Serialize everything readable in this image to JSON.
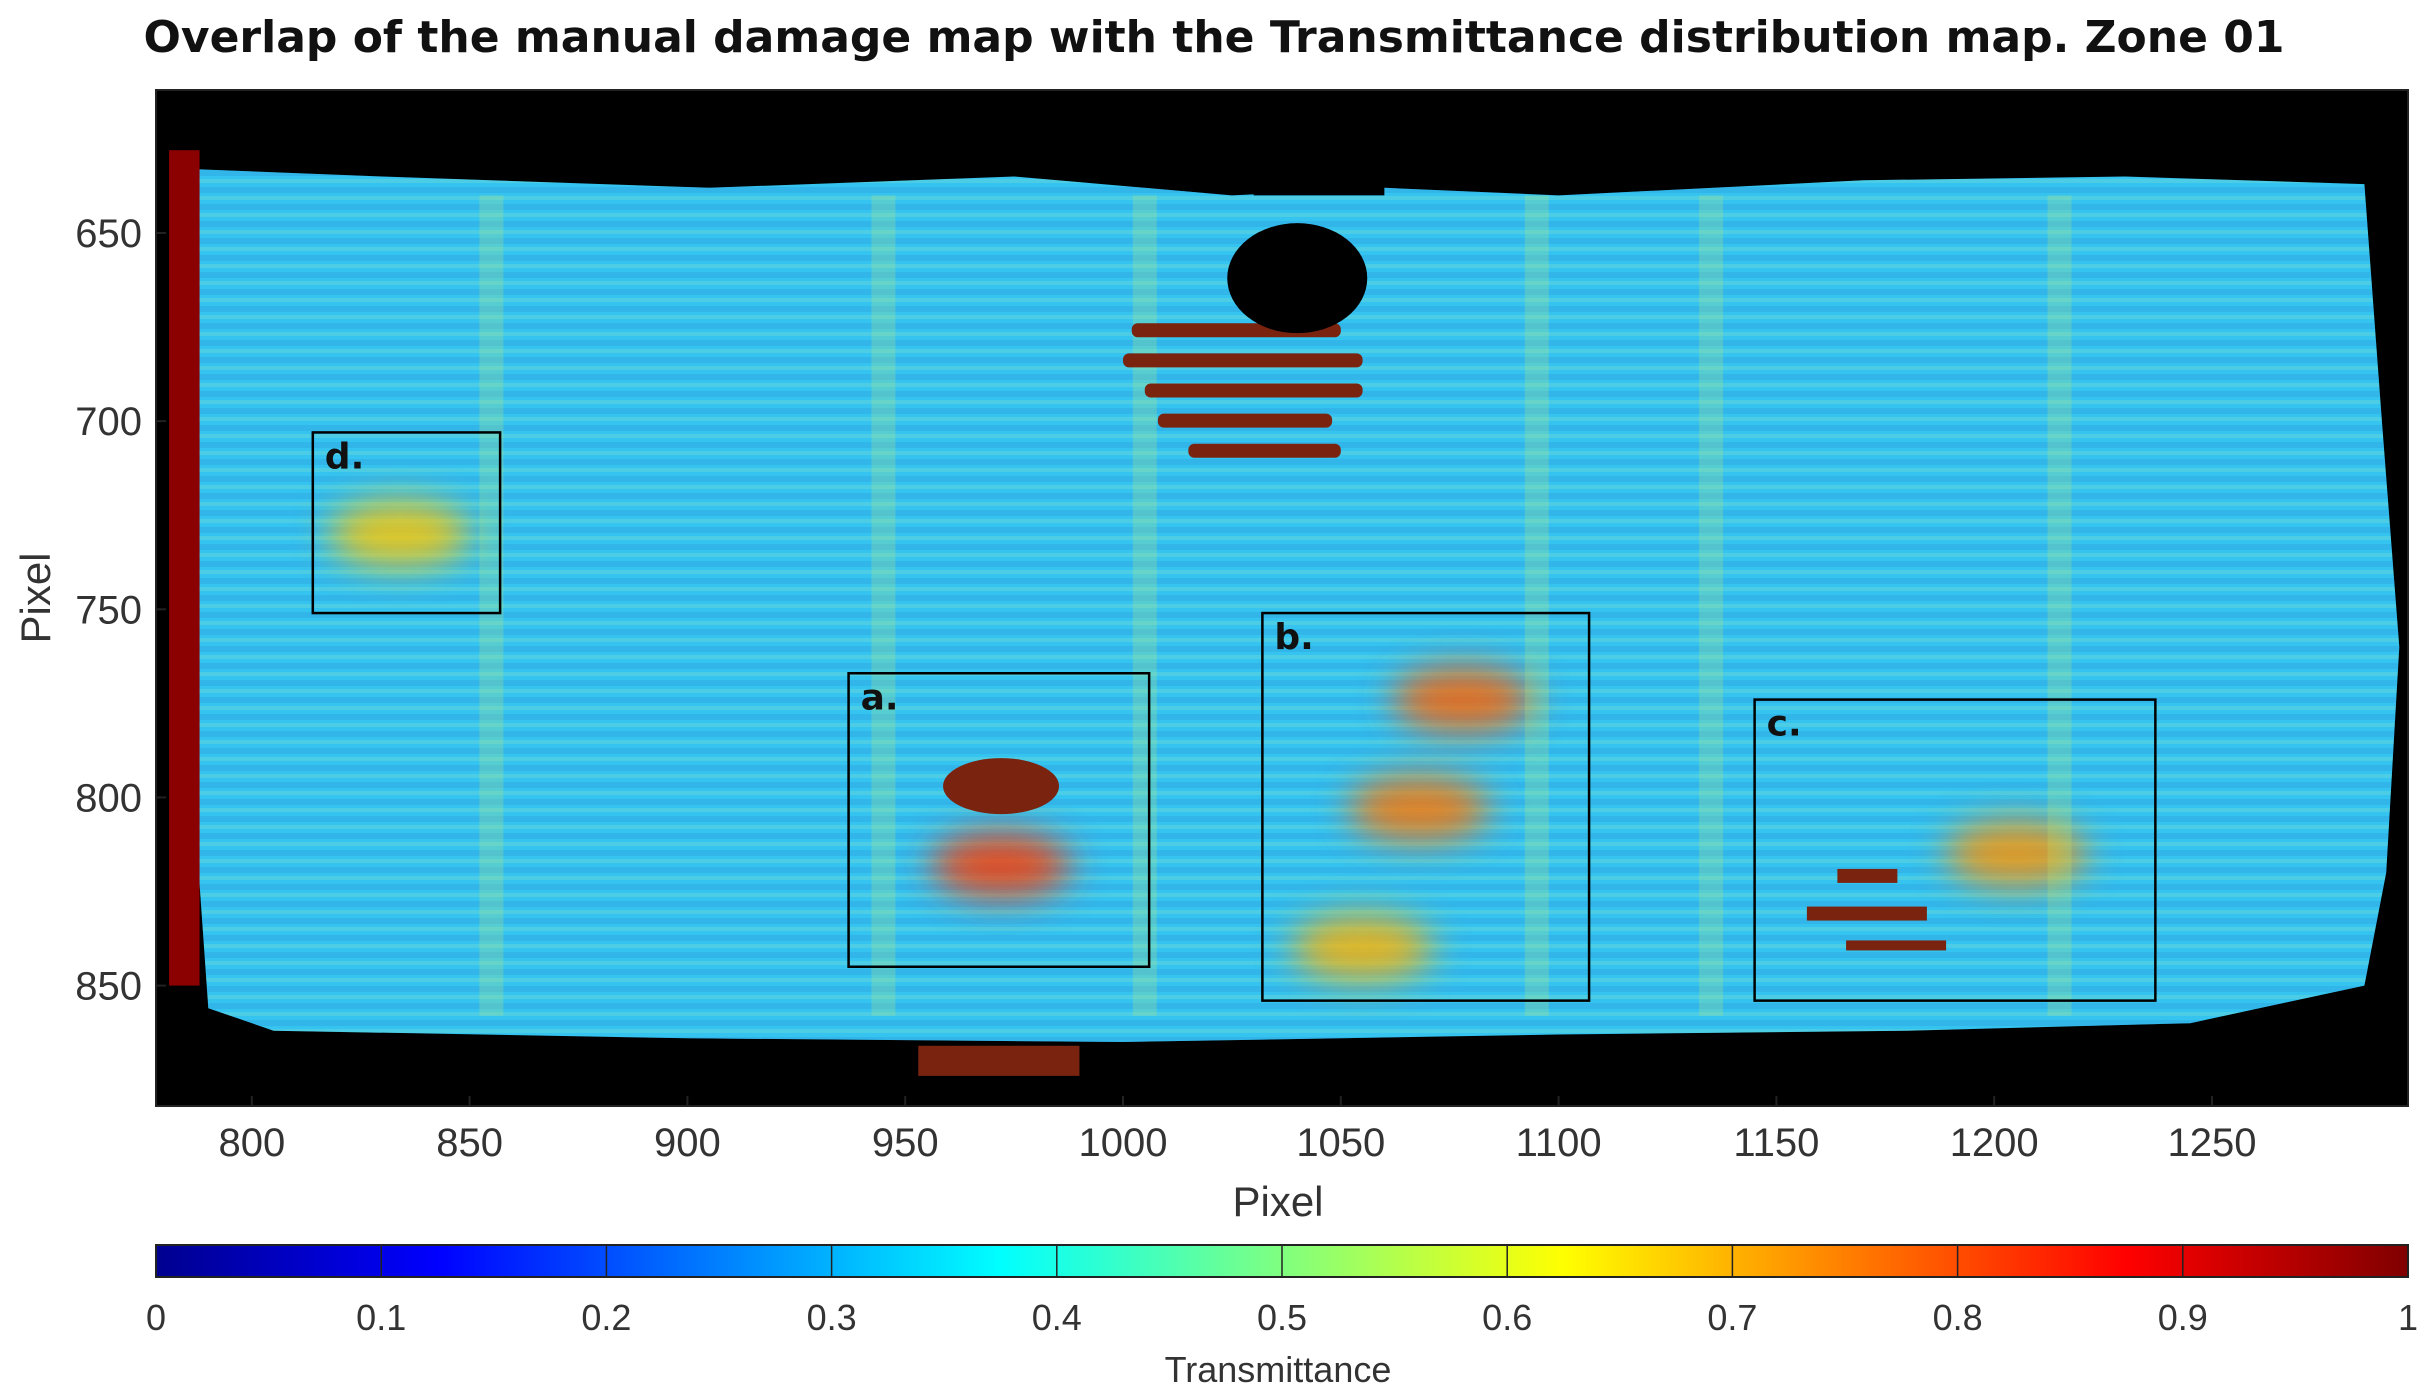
{
  "chart_data": {
    "type": "heatmap",
    "title": "Overlap of the manual damage map with the Transmittance distribution map. Zone 01",
    "xlabel": "Pixel",
    "ylabel": "Pixel",
    "xlim": [
      778,
      1295
    ],
    "ylim": [
      612,
      882
    ],
    "y_reversed": true,
    "xticks": [
      800,
      850,
      900,
      950,
      1000,
      1050,
      1100,
      1150,
      1200,
      1250
    ],
    "yticks": [
      650,
      700,
      750,
      800,
      850
    ],
    "colormap": "jet",
    "colorbar": {
      "label": "Transmittance",
      "limits": [
        0,
        1
      ],
      "ticks": [
        0,
        0.1,
        0.2,
        0.3,
        0.4,
        0.5,
        0.6,
        0.7,
        0.8,
        0.9,
        1
      ]
    },
    "colors": {
      "background": "#000000",
      "base_field": "#35c3ef",
      "damage_overlay": "#7a2410",
      "edge": "#8b0000"
    },
    "boxes": [
      {
        "label": "a.",
        "x0": 937,
        "x1": 1006,
        "y0": 767,
        "y1": 845
      },
      {
        "label": "b.",
        "x0": 1032,
        "x1": 1107,
        "y0": 751,
        "y1": 854
      },
      {
        "label": "c.",
        "x0": 1145,
        "x1": 1237,
        "y0": 774,
        "y1": 854
      },
      {
        "label": "d.",
        "x0": 814,
        "x1": 857,
        "y0": 703,
        "y1": 751
      }
    ],
    "hotspots": [
      {
        "x": 972,
        "y": 818,
        "value": 0.82
      },
      {
        "x": 1078,
        "y": 774,
        "value": 0.78
      },
      {
        "x": 1068,
        "y": 803,
        "value": 0.76
      },
      {
        "x": 1205,
        "y": 815,
        "value": 0.73
      },
      {
        "x": 834,
        "y": 730,
        "value": 0.68
      },
      {
        "x": 1055,
        "y": 840,
        "value": 0.7
      }
    ]
  }
}
